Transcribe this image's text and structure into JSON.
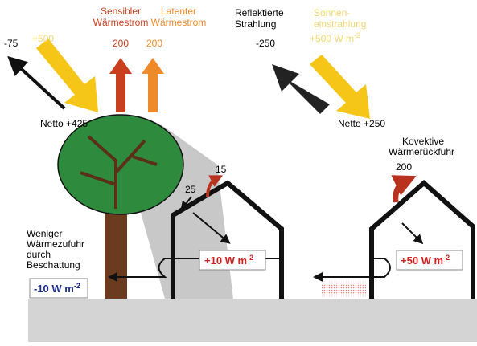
{
  "left": {
    "reflected": "-75",
    "solar": "+500",
    "sensible": {
      "lines": [
        "Sensibler",
        "Wärmestrom"
      ],
      "value": "200"
    },
    "latent": {
      "lines": [
        "Latenter",
        "Wärmestrom"
      ],
      "value": "200"
    },
    "net": "Netto +425",
    "roof_a": "15",
    "roof_b": "25",
    "house_flux": {
      "text": "+10 W m",
      "sup": "-2"
    },
    "shade": {
      "lines": [
        "Weniger",
        "Wärmezufuhr",
        "durch",
        "Beschattung"
      ]
    },
    "shade_flux": {
      "text": "-10 W m",
      "sup": "-2"
    }
  },
  "right": {
    "reflected": {
      "lines": [
        "Reflektierte",
        "Strahlung"
      ],
      "value": "-250"
    },
    "solar": {
      "lines": [
        "Sonnen-",
        "einstrahlung"
      ],
      "value": {
        "text": "+500 W m",
        "sup": "-2"
      }
    },
    "net": "Netto +250",
    "convective": {
      "lines": [
        "Kovektive",
        "Wärmerückfuhr"
      ],
      "value": "200"
    },
    "house_flux": {
      "text": "+50 W m",
      "sup": "-2"
    }
  }
}
